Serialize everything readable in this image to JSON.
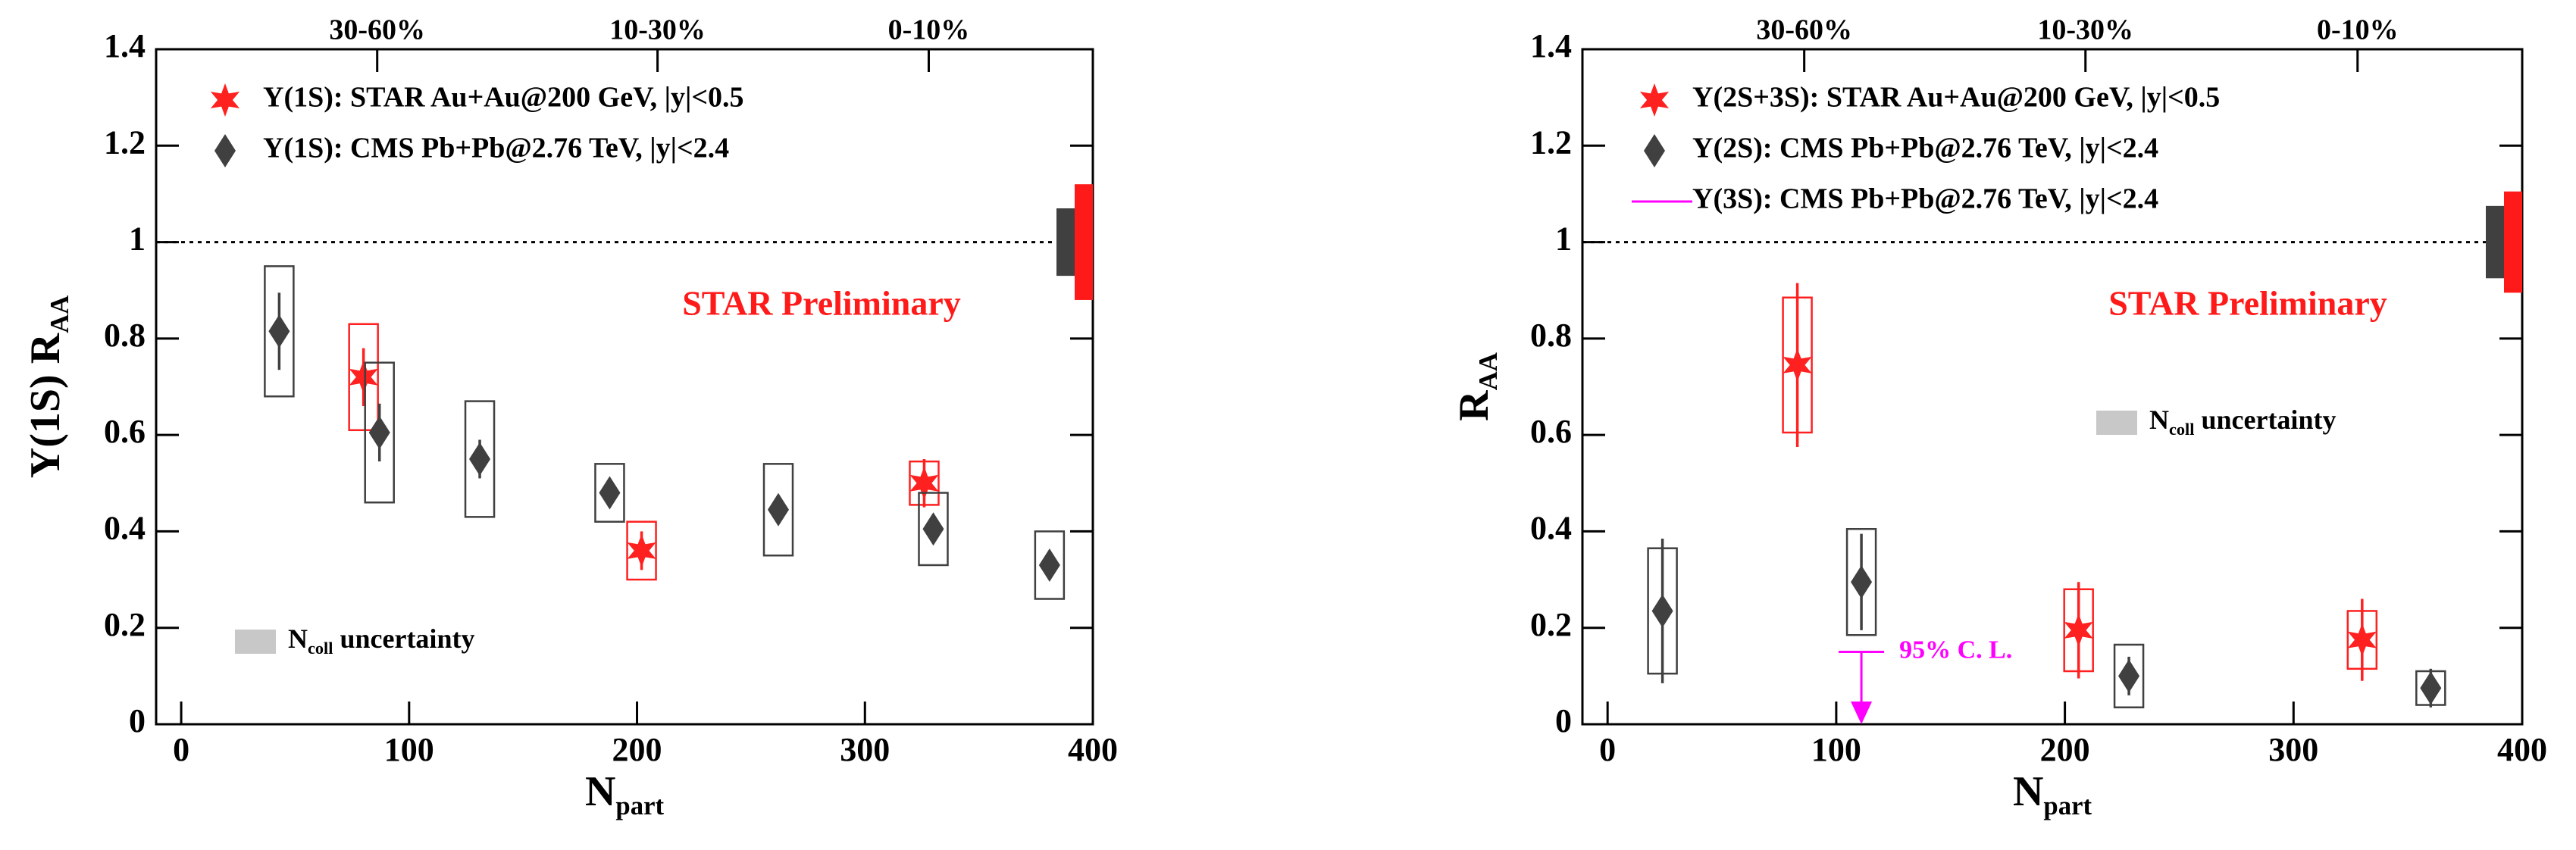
{
  "chart_data": [
    {
      "type": "scatter",
      "ylabel": "Υ(1S) R",
      "ylabel_sub": "AA",
      "xlabel": "N",
      "xlabel_sub": "part",
      "annotation": "STAR Preliminary",
      "ncoll_label": {
        "text": "N",
        "sub": "coll",
        "rest": " uncertainty",
        "color": "#c8c8c8"
      },
      "xlim": [
        -11,
        400
      ],
      "ylim": [
        0,
        1.4
      ],
      "xticks": [
        0,
        100,
        200,
        300,
        400
      ],
      "yticks": [
        0,
        0.2,
        0.4,
        0.6,
        0.8,
        1,
        1.2,
        1.4
      ],
      "top_ticks": [
        {
          "value": 86,
          "label": "30-60%"
        },
        {
          "value": 209,
          "label": "10-30%"
        },
        {
          "value": 328,
          "label": "0-10%"
        }
      ],
      "reference_line": 1,
      "global_uncertainties": [
        {
          "color": "#404040",
          "center": 1,
          "error": 0.07
        },
        {
          "color": "#ff1a1a",
          "center": 1,
          "error": 0.12
        }
      ],
      "series": [
        {
          "name": "Υ(1S): STAR Au+Au@200 GeV, |y|<0.5",
          "color": "#ff2020",
          "marker": "star",
          "x": [
            80,
            202,
            326
          ],
          "values": [
            0.72,
            0.36,
            0.5
          ],
          "errors": [
            0.06,
            0.04,
            0.05
          ],
          "sys_errors": [
            0.11,
            0.06,
            0.045
          ]
        },
        {
          "name": "Υ(1S): CMS Pb+Pb@2.76 TeV, |y|<2.4",
          "color": "#404040",
          "marker": "diamond",
          "x": [
            43,
            87,
            131,
            188,
            262,
            330,
            381
          ],
          "values": [
            0.815,
            0.605,
            0.55,
            0.48,
            0.445,
            0.405,
            0.33
          ],
          "errors": [
            0.08,
            0.06,
            0.04,
            0.03,
            0.03,
            0.03,
            0.03
          ],
          "sys_errors": [
            0.135,
            0.145,
            0.12,
            0.06,
            0.095,
            0.075,
            0.07
          ]
        }
      ]
    },
    {
      "type": "scatter",
      "ylabel": "R",
      "ylabel_sub": "AA",
      "xlabel": "N",
      "xlabel_sub": "part",
      "annotation": "STAR Preliminary",
      "ncoll_label": {
        "text": "N",
        "sub": "coll",
        "rest": " uncertainty",
        "color": "#c8c8c8"
      },
      "xlim": [
        -11,
        400
      ],
      "ylim": [
        0,
        1.4
      ],
      "xticks": [
        0,
        100,
        200,
        300,
        400
      ],
      "yticks": [
        0,
        0.2,
        0.4,
        0.6,
        0.8,
        1,
        1.2,
        1.4
      ],
      "top_ticks": [
        {
          "value": 86,
          "label": "30-60%"
        },
        {
          "value": 209,
          "label": "10-30%"
        },
        {
          "value": 328,
          "label": "0-10%"
        }
      ],
      "reference_line": 1,
      "global_uncertainties": [
        {
          "color": "#404040",
          "center": 1,
          "error": 0.075
        },
        {
          "color": "#ff1a1a",
          "center": 1,
          "error": 0.105
        }
      ],
      "series": [
        {
          "name": "Υ(2S+3S): STAR Au+Au@200 GeV, |y|<0.5",
          "color": "#ff2020",
          "marker": "star",
          "x": [
            83,
            206,
            330
          ],
          "values": [
            0.745,
            0.195,
            0.175
          ],
          "errors": [
            0.17,
            0.1,
            0.085
          ],
          "sys_errors": [
            0.14,
            0.085,
            0.06
          ]
        },
        {
          "name": "Υ(2S): CMS Pb+Pb@2.76 TeV, |y|<2.4",
          "color": "#404040",
          "marker": "diamond",
          "x": [
            24,
            111,
            228,
            360
          ],
          "values": [
            0.235,
            0.295,
            0.1,
            0.075
          ],
          "errors": [
            0.15,
            0.1,
            0.04,
            0.04
          ],
          "sys_errors": [
            0.13,
            0.11,
            0.065,
            0.035
          ]
        },
        {
          "name": "Υ(3S): CMS Pb+Pb@2.76 TeV, |y|<2.4",
          "color": "#ff00ff",
          "marker": "limit",
          "x": [
            111
          ],
          "values": [
            0.15
          ],
          "label": "95% C. L."
        }
      ]
    }
  ]
}
